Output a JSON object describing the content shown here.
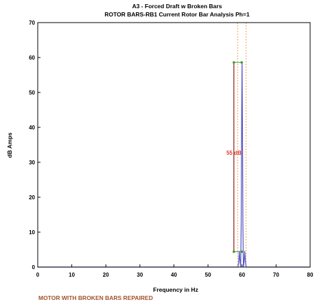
{
  "chart_data": {
    "type": "line",
    "title": "A3   - Forced Draft w Broken Bars",
    "subtitle": "ROTOR BARS-RB1   Current Rotor Bar Analysis Ph=1",
    "xlabel": "Frequency in Hz",
    "ylabel": "dB Amps",
    "xlim": [
      0,
      80
    ],
    "ylim": [
      0,
      70
    ],
    "xticks": [
      0,
      10,
      20,
      30,
      40,
      50,
      60,
      70,
      80
    ],
    "yticks": [
      0,
      10,
      20,
      30,
      40,
      50,
      60,
      70
    ],
    "grid": false,
    "series": [
      {
        "color": "#5b5bc9",
        "x": [
          0,
          58.8,
          59.0,
          59.2,
          59.4,
          59.6,
          59.75,
          59.9,
          60.0,
          60.1,
          60.25,
          60.4,
          60.6,
          60.8,
          61.0,
          61.2,
          80
        ],
        "values": [
          0,
          0,
          1.5,
          4.5,
          1.5,
          0,
          12,
          45,
          58.5,
          45,
          12,
          0,
          1.5,
          4.5,
          1.5,
          0,
          0
        ]
      }
    ],
    "markers": {
      "color": "#3f9a2f",
      "points": [
        [
          57.6,
          58.6
        ],
        [
          59.9,
          58.6
        ],
        [
          57.6,
          4.4
        ],
        [
          59.9,
          4.4
        ]
      ]
    },
    "annotations": [
      {
        "text": "55 dB",
        "color": "#e23a2a",
        "bracket_color": "#8b1a1a",
        "x": 57.6,
        "y_from": 4.4,
        "y_to": 58.6,
        "label_y": 32.7
      }
    ],
    "reference_lines": {
      "color": "#f0a050",
      "x": [
        58.7,
        61.2
      ]
    },
    "footnote": "MOTOR WITH BROKEN BARS REPAIRED",
    "footnote_color": "#a0522d"
  }
}
